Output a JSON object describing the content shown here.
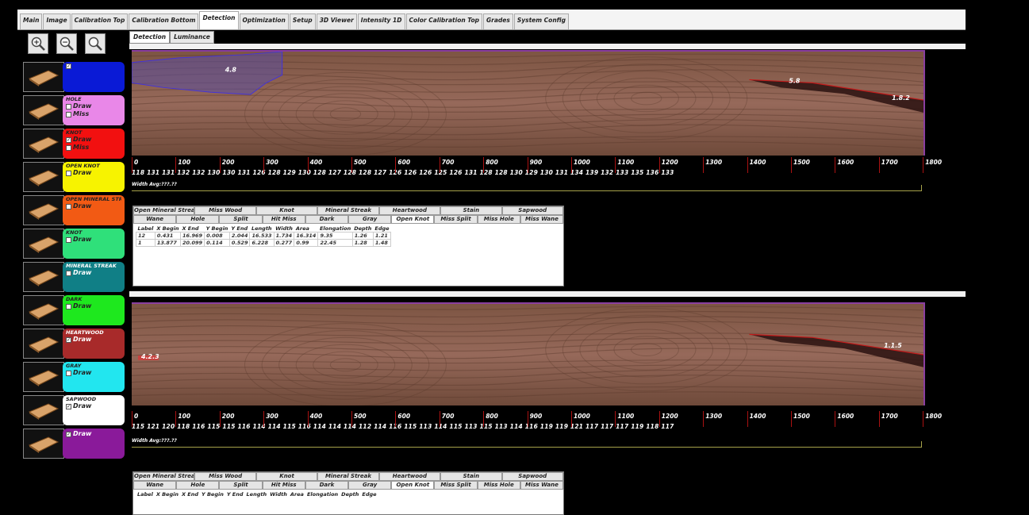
{
  "menu_tabs": [
    "Main",
    "Image",
    "Calibration Top",
    "Calibration Bottom",
    "Detection",
    "Optimization",
    "Setup",
    "3D Viewer",
    "Intensity 1D",
    "Color Calibration Top",
    "Grades",
    "System Config"
  ],
  "active_menu_tab": 4,
  "sub_tabs": [
    "Detection",
    "Luminance"
  ],
  "zoom_buttons": [
    {
      "name": "zoom-in-icon",
      "glyph": "+"
    },
    {
      "name": "zoom-out-icon",
      "glyph": "−"
    },
    {
      "name": "zoom-fit-icon",
      "glyph": ""
    }
  ],
  "defects": [
    {
      "name": "",
      "color": "#0a1ad6",
      "label_color": "#fff",
      "cb1": "",
      "cb1_checked": true,
      "cb2": "",
      "cb2_checked": false
    },
    {
      "name": "HOLE",
      "color": "#e987e8",
      "label_color": "#222",
      "cb1": "Draw",
      "cb1_checked": false,
      "cb2": "Miss",
      "cb2_checked": false
    },
    {
      "name": "KNOT",
      "color": "#f21010",
      "label_color": "#222",
      "cb1": "Draw",
      "cb1_checked": true,
      "cb2": "Miss",
      "cb2_checked": false
    },
    {
      "name": "OPEN KNOT",
      "color": "#f7f300",
      "label_color": "#222",
      "cb1": "Draw",
      "cb1_checked": false,
      "cb2": "",
      "cb2_checked": false
    },
    {
      "name": "OPEN MINERAL STREAK",
      "color": "#f25a14",
      "label_color": "#222",
      "cb1": "Draw",
      "cb1_checked": false,
      "cb2": "",
      "cb2_checked": false
    },
    {
      "name": "KNOT",
      "color": "#2fe07a",
      "label_color": "#222",
      "cb1": "Draw",
      "cb1_checked": false,
      "cb2": "",
      "cb2_checked": false
    },
    {
      "name": "MINERAL STREAK",
      "color": "#107f86",
      "label_color": "#fff",
      "cb1": "Draw",
      "cb1_checked": false,
      "cb2": "",
      "cb2_checked": false
    },
    {
      "name": "DARK",
      "color": "#1ee81e",
      "label_color": "#222",
      "cb1": "Draw",
      "cb1_checked": false,
      "cb2": "",
      "cb2_checked": false
    },
    {
      "name": "HEARTWOOD",
      "color": "#a82a2a",
      "label_color": "#fff",
      "cb1": "Draw",
      "cb1_checked": true,
      "cb2": "",
      "cb2_checked": false
    },
    {
      "name": "GRAY",
      "color": "#22e6ef",
      "label_color": "#222",
      "cb1": "Draw",
      "cb1_checked": false,
      "cb2": "",
      "cb2_checked": false
    },
    {
      "name": "SAPWOOD",
      "color": "#ffffff",
      "label_color": "#222",
      "cb1": "Draw",
      "cb1_checked": true,
      "cb2": "",
      "cb2_checked": false
    },
    {
      "name": "",
      "color": "#8a1a9a",
      "label_color": "#fff",
      "cb1": "Draw",
      "cb1_checked": true,
      "cb2": "",
      "cb2_checked": false
    }
  ],
  "ruler_labels": [
    "0",
    "100",
    "200",
    "300",
    "400",
    "500",
    "600",
    "700",
    "800",
    "900",
    "1000",
    "1100",
    "1200",
    "1300",
    "1400",
    "1500",
    "1600",
    "1700",
    "1800"
  ],
  "top_board": {
    "marker_a": "4.8",
    "marker_b": "5.8",
    "marker_c": "1.8.2",
    "values": "118 131 131 132 132 130 130 131 126 128 129 130 128 127 128 128 127 126 126 126 125 126 131 128 128 130 129 130 131 134 139 132 133 135 136 133",
    "width_label": "Width Avg:???.??"
  },
  "bottom_board": {
    "marker_a": "4.2.3",
    "marker_b": "1.1.5",
    "values": "115 121 120 118 116 115 115 116 114 114 115 116 114 114 114 112 114 116 115 113 114 115 113 115 113 114 116 119 119 121 117 117 117 119 118 117",
    "width_label": "Width Avg:???.??"
  },
  "defect_tabs_row1": [
    "Open Mineral Streak",
    "Miss Wood",
    "Knot",
    "Mineral Streak",
    "Heartwood",
    "Stain",
    "Sapwood"
  ],
  "defect_tabs_row2": [
    "Wane",
    "Hole",
    "Split",
    "Hit Miss",
    "Dark",
    "Gray",
    "Open Knot",
    "Miss Split",
    "Miss Hole",
    "Miss Wane"
  ],
  "active_row2_tab": 6,
  "table_columns": [
    "Label",
    "X Begin",
    "X End",
    "Y Begin",
    "Y End",
    "Length",
    "Width",
    "Area",
    "Elongation",
    "Depth",
    "Edge"
  ],
  "top_table_rows": [
    [
      "12",
      "0.431",
      "16.969",
      "0.008",
      "2.044",
      "16.533",
      "1.734",
      "16.314",
      "9.35",
      "1.26",
      "1.21"
    ],
    [
      "1",
      "13.877",
      "20.099",
      "0.114",
      "0.529",
      "6.228",
      "0.277",
      "0.99",
      "22.45",
      "1.28",
      "1.48"
    ]
  ],
  "bottom_table_rows": []
}
